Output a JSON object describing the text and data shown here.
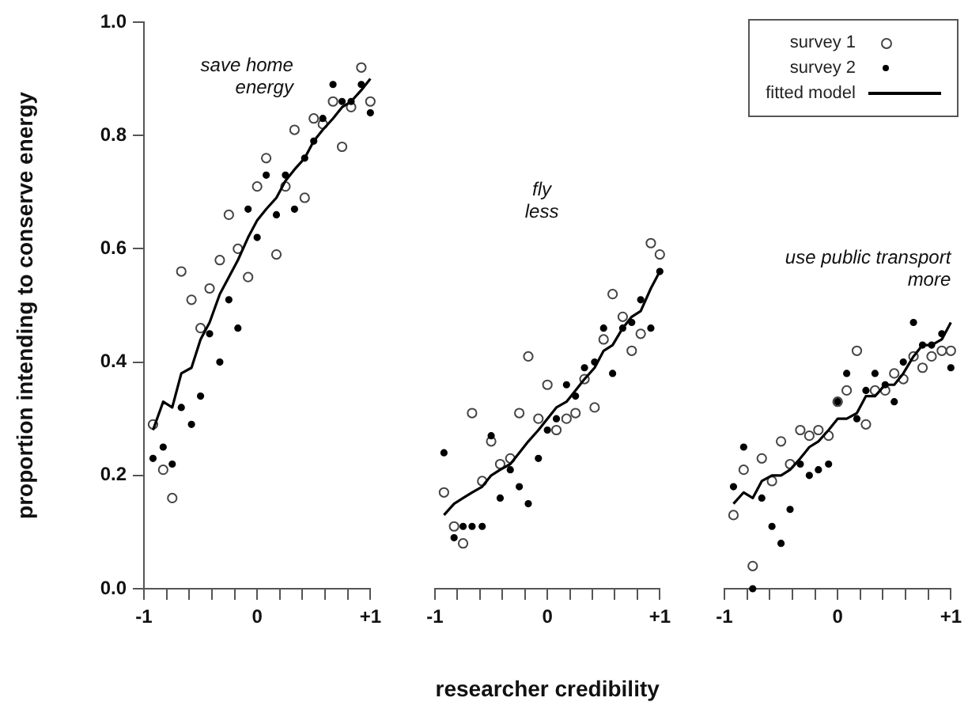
{
  "chart_data": [
    {
      "type": "scatter",
      "ylabel": "proportion intending to conserve energy",
      "annotations": [
        "save home\nenergy"
      ],
      "marker": "circle",
      "x": [
        -0.92,
        -0.83,
        -0.75,
        -0.67,
        -0.58,
        -0.5,
        -0.42,
        -0.33,
        -0.25,
        -0.17,
        -0.08,
        0,
        0.08,
        0.17,
        0.25,
        0.33,
        0.42,
        0.5,
        0.58,
        0.67,
        0.75,
        0.83,
        0.92,
        1
      ],
      "xlim": [
        -1,
        1
      ],
      "ylim": [
        0,
        1
      ],
      "xticks": [
        {
          "value": -1,
          "label": "-1"
        },
        {
          "value": -0.8,
          "label": null
        },
        {
          "value": -0.6,
          "label": null
        },
        {
          "value": -0.4,
          "label": null
        },
        {
          "value": -0.2,
          "label": null
        },
        {
          "value": 0,
          "label": "0"
        },
        {
          "value": 0.2,
          "label": null
        },
        {
          "value": 0.4,
          "label": null
        },
        {
          "value": 0.6,
          "label": null
        },
        {
          "value": 0.8,
          "label": null
        },
        {
          "value": 1,
          "label": "+1"
        }
      ],
      "yticks": [
        {
          "value": 0,
          "label": "0.0"
        },
        0.2,
        0.4,
        0.6,
        0.8,
        {
          "value": 1,
          "label": "1.0"
        }
      ],
      "series": [
        {
          "color": "#444444",
          "values": [
            0.29,
            0.21,
            0.16,
            0.56,
            0.51,
            0.46,
            0.53,
            0.58,
            0.66,
            0.6,
            0.55,
            0.71,
            0.76,
            0.59,
            0.71,
            0.81,
            0.69,
            0.83,
            0.82,
            0.86,
            0.78,
            0.85,
            0.92,
            0.86
          ]
        },
        {
          "color": "#000000",
          "values": [
            0.23,
            0.25,
            0.22,
            0.32,
            0.29,
            0.34,
            0.45,
            0.4,
            0.51,
            0.46,
            0.67,
            0.62,
            0.73,
            0.66,
            0.73,
            0.67,
            0.76,
            0.79,
            0.83,
            0.89,
            0.86,
            0.86,
            0.89,
            0.84
          ]
        },
        {
          "type": "line",
          "marker": "none",
          "color": "#000000",
          "values": [
            0.28,
            0.33,
            0.32,
            0.38,
            0.39,
            0.44,
            0.47,
            0.52,
            0.55,
            0.58,
            0.62,
            0.65,
            0.67,
            0.69,
            0.72,
            0.74,
            0.76,
            0.79,
            0.81,
            0.83,
            0.85,
            0.86,
            0.88,
            0.9
          ]
        }
      ]
    },
    {
      "type": "scatter",
      "xlabel": "researcher credibility",
      "annotations": [
        "fly\nless"
      ],
      "marker": "circle",
      "tick_labels": "x",
      "x": [
        -0.92,
        -0.83,
        -0.75,
        -0.67,
        -0.58,
        -0.5,
        -0.42,
        -0.33,
        -0.25,
        -0.17,
        -0.08,
        0,
        0.08,
        0.17,
        0.25,
        0.33,
        0.42,
        0.5,
        0.58,
        0.67,
        0.75,
        0.83,
        0.92,
        1
      ],
      "xlim": [
        -1,
        1
      ],
      "ylim": [
        0,
        1
      ],
      "xticks": [
        {
          "value": -1,
          "label": "-1"
        },
        {
          "value": -0.8,
          "label": null
        },
        {
          "value": -0.6,
          "label": null
        },
        {
          "value": -0.4,
          "label": null
        },
        {
          "value": -0.2,
          "label": null
        },
        {
          "value": 0,
          "label": "0"
        },
        {
          "value": 0.2,
          "label": null
        },
        {
          "value": 0.4,
          "label": null
        },
        {
          "value": 0.6,
          "label": null
        },
        {
          "value": 0.8,
          "label": null
        },
        {
          "value": 1,
          "label": "+1"
        }
      ],
      "series": [
        {
          "color": "#444444",
          "values": [
            0.17,
            0.11,
            0.08,
            0.31,
            0.19,
            0.26,
            0.22,
            0.23,
            0.31,
            0.41,
            0.3,
            0.36,
            0.28,
            0.3,
            0.31,
            0.37,
            0.32,
            0.44,
            0.52,
            0.48,
            0.42,
            0.45,
            0.61,
            0.59
          ]
        },
        {
          "color": "#000000",
          "values": [
            0.24,
            0.09,
            0.11,
            0.11,
            0.11,
            0.27,
            0.16,
            0.21,
            0.18,
            0.15,
            0.23,
            0.28,
            0.3,
            0.36,
            0.34,
            0.39,
            0.4,
            0.46,
            0.38,
            0.46,
            0.47,
            0.51,
            0.46,
            0.56
          ]
        },
        {
          "type": "line",
          "marker": "none",
          "color": "#000000",
          "values": [
            0.13,
            0.15,
            0.16,
            0.17,
            0.18,
            0.2,
            0.21,
            0.22,
            0.24,
            0.26,
            0.28,
            0.3,
            0.32,
            0.33,
            0.35,
            0.37,
            0.39,
            0.42,
            0.43,
            0.46,
            0.48,
            0.49,
            0.53,
            0.56
          ]
        }
      ]
    },
    {
      "type": "scatter",
      "annotations": [
        "use public transport\nmore"
      ],
      "marker": "circle",
      "tick_labels": "x",
      "legend": "top right",
      "x": [
        -0.92,
        -0.83,
        -0.75,
        -0.67,
        -0.58,
        -0.5,
        -0.42,
        -0.33,
        -0.25,
        -0.17,
        -0.08,
        0,
        0.08,
        0.17,
        0.25,
        0.33,
        0.42,
        0.5,
        0.58,
        0.67,
        0.75,
        0.83,
        0.92,
        1
      ],
      "xlim": [
        -1,
        1
      ],
      "ylim": [
        0,
        1
      ],
      "xticks": [
        {
          "value": -1,
          "label": "-1"
        },
        {
          "value": -0.8,
          "label": null
        },
        {
          "value": -0.6,
          "label": null
        },
        {
          "value": -0.4,
          "label": null
        },
        {
          "value": -0.2,
          "label": null
        },
        {
          "value": 0,
          "label": "0"
        },
        {
          "value": 0.2,
          "label": null
        },
        {
          "value": 0.4,
          "label": null
        },
        {
          "value": 0.6,
          "label": null
        },
        {
          "value": 0.8,
          "label": null
        },
        {
          "value": 1,
          "label": "+1"
        }
      ],
      "series": [
        {
          "name": "survey 1",
          "color": "#444444",
          "values": [
            0.13,
            0.21,
            0.04,
            0.23,
            0.19,
            0.26,
            0.22,
            0.28,
            0.27,
            0.28,
            0.27,
            0.33,
            0.35,
            0.42,
            0.29,
            0.35,
            0.35,
            0.38,
            0.37,
            0.41,
            0.39,
            0.41,
            0.42,
            0.42
          ]
        },
        {
          "name": "survey 2",
          "color": "#000000",
          "values": [
            0.18,
            0.25,
            0.0,
            0.16,
            0.11,
            0.08,
            0.14,
            0.22,
            0.2,
            0.21,
            0.22,
            0.33,
            0.38,
            0.3,
            0.35,
            0.38,
            0.36,
            0.33,
            0.4,
            0.47,
            0.43,
            0.43,
            0.45,
            0.39
          ]
        },
        {
          "name": "fitted model",
          "type": "line",
          "marker": "none",
          "color": "#000000",
          "values": [
            0.15,
            0.17,
            0.16,
            0.19,
            0.2,
            0.2,
            0.21,
            0.23,
            0.25,
            0.26,
            0.28,
            0.3,
            0.3,
            0.31,
            0.34,
            0.34,
            0.36,
            0.36,
            0.38,
            0.41,
            0.43,
            0.43,
            0.44,
            0.47
          ]
        }
      ]
    }
  ]
}
